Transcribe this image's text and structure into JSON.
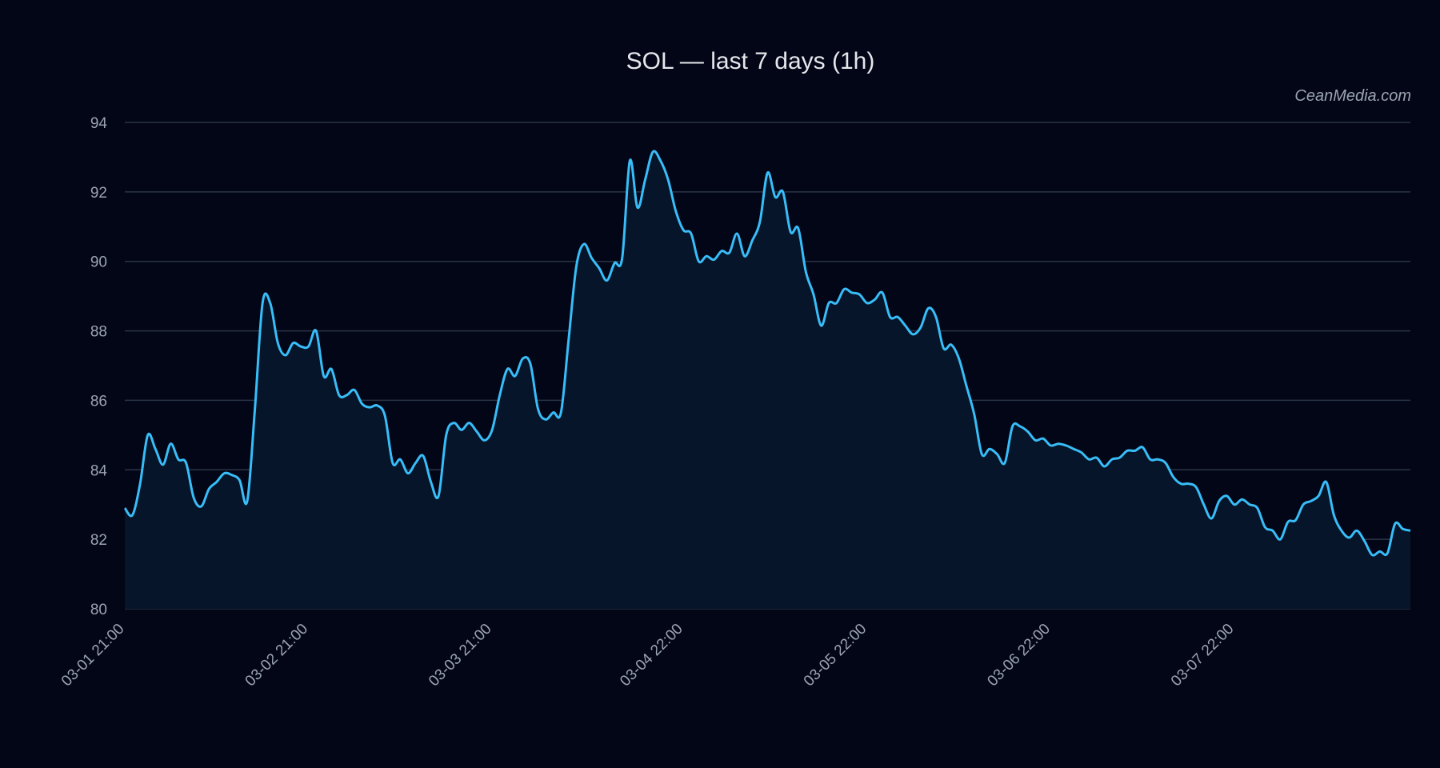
{
  "chart_data": {
    "type": "area",
    "title": "SOL — last 7 days (1h)",
    "watermark": "CeanMedia.com",
    "xlabel": "",
    "ylabel": "",
    "x_start": "03-01 21:00",
    "x_step": "1h",
    "ylim": [
      80,
      94
    ],
    "yticks": [
      80,
      82,
      84,
      86,
      88,
      90,
      92,
      94
    ],
    "xticks": [
      "03-01 21:00",
      "03-02 21:00",
      "03-03 21:00",
      "03-04 22:00",
      "03-05 22:00",
      "03-06 22:00",
      "03-07 22:00"
    ],
    "grid": true,
    "colors": {
      "background": "#020617",
      "line": "#38bdf8",
      "fill": "#061529",
      "grid": "#2b3446",
      "text": "#9ca3af"
    },
    "values": [
      82.9,
      82.7,
      83.6,
      85.0,
      84.6,
      84.15,
      84.75,
      84.3,
      84.2,
      83.2,
      82.95,
      83.45,
      83.65,
      83.9,
      83.85,
      83.7,
      83.1,
      85.75,
      88.8,
      88.8,
      87.65,
      87.3,
      87.65,
      87.55,
      87.55,
      88.0,
      86.7,
      86.9,
      86.15,
      86.15,
      86.3,
      85.9,
      85.8,
      85.85,
      85.55,
      84.2,
      84.3,
      83.9,
      84.2,
      84.4,
      83.65,
      83.25,
      85.0,
      85.35,
      85.15,
      85.35,
      85.1,
      84.85,
      85.15,
      86.15,
      86.9,
      86.7,
      87.2,
      87.05,
      85.75,
      85.45,
      85.65,
      85.65,
      87.75,
      89.85,
      90.5,
      90.1,
      89.8,
      89.45,
      89.95,
      90.1,
      92.9,
      91.55,
      92.35,
      93.15,
      92.9,
      92.35,
      91.45,
      90.9,
      90.8,
      90.0,
      90.15,
      90.05,
      90.3,
      90.25,
      90.8,
      90.15,
      90.6,
      91.15,
      92.55,
      91.85,
      92.0,
      90.85,
      90.95,
      89.7,
      89.05,
      88.15,
      88.8,
      88.8,
      89.2,
      89.1,
      89.05,
      88.8,
      88.9,
      89.1,
      88.4,
      88.4,
      88.15,
      87.9,
      88.1,
      88.65,
      88.4,
      87.5,
      87.6,
      87.2,
      86.4,
      85.6,
      84.45,
      84.6,
      84.45,
      84.2,
      85.25,
      85.25,
      85.1,
      84.85,
      84.9,
      84.7,
      84.75,
      84.7,
      84.6,
      84.5,
      84.3,
      84.35,
      84.1,
      84.3,
      84.35,
      84.55,
      84.55,
      84.65,
      84.3,
      84.3,
      84.2,
      83.8,
      83.6,
      83.6,
      83.5,
      83.0,
      82.6,
      83.1,
      83.25,
      83.0,
      83.15,
      83.0,
      82.9,
      82.35,
      82.25,
      82.0,
      82.5,
      82.55,
      83.0,
      83.1,
      83.25,
      83.65,
      82.7,
      82.25,
      82.05,
      82.25,
      81.95,
      81.55,
      81.65,
      81.6,
      82.45,
      82.3,
      82.25
    ]
  }
}
